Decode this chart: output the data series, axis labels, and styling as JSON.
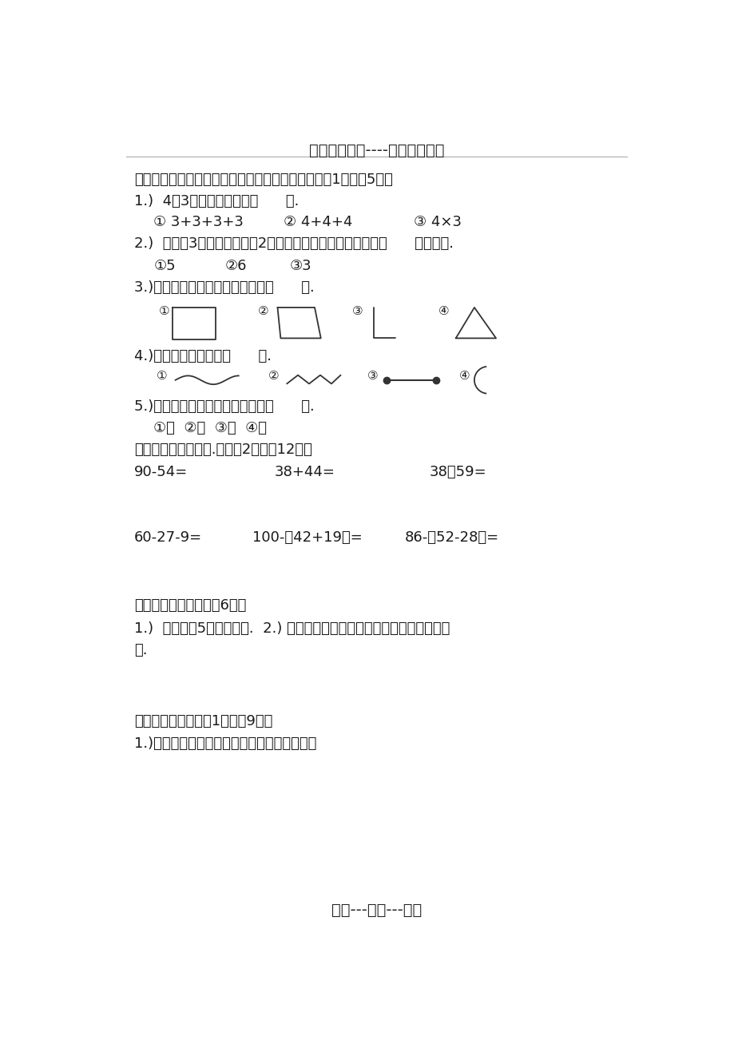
{
  "title_top": "精选优质文档----倾情为你奉上",
  "title_bottom": "专心---专注---专业",
  "bg_color": "#ffffff",
  "section3_header": "三、我会选（将正确答案的序号填在括号里）（每题1分，共5分）",
  "q1": "1.)  4个3列成加法算式是（      ）.",
  "q1_opts": [
    "① 3+3+3+3",
    "② 4+4+4",
    "③ 4×3"
  ],
  "q2": "2.)  明明有3件不同的衬衣，2条颜色不一样的裙子，一共有（      ）种穿法.",
  "q2_opts": [
    "①5",
    "②6",
    "③3"
  ],
  "q3": "3.)下列图形中，有二个直角的是（      ）.",
  "q4": "4.)下列线中，线段是（      ）.",
  "q5": "5.)可以用测量物体长度单位的是（      ）.",
  "q5_opts": "①时  ②角  ③分  ④米",
  "section4_header": "四、我会用竖式计算.（每题2分，共12分）",
  "calc_row1": [
    "90-54=",
    "38+44=",
    "38＋59="
  ],
  "calc_row2": [
    "60-27-9=",
    "100-（42+19）=",
    "86-（52-28）="
  ],
  "section5_header": "五、我会画我会画（共6分）",
  "section5_q1": "1.)  画一条比5厘长的线段.  2.) 在下面分别画一个锐角，一个钝角和一个直",
  "section5_q2": "角.",
  "section6_header": "六、我会动脑（每空1分，共9分）",
  "section6_q1": "1.)观察物体（将正确答案的序号填在括号里）",
  "dark": "#1a1a1a",
  "gray": "#888888",
  "shape_color": "#333333"
}
